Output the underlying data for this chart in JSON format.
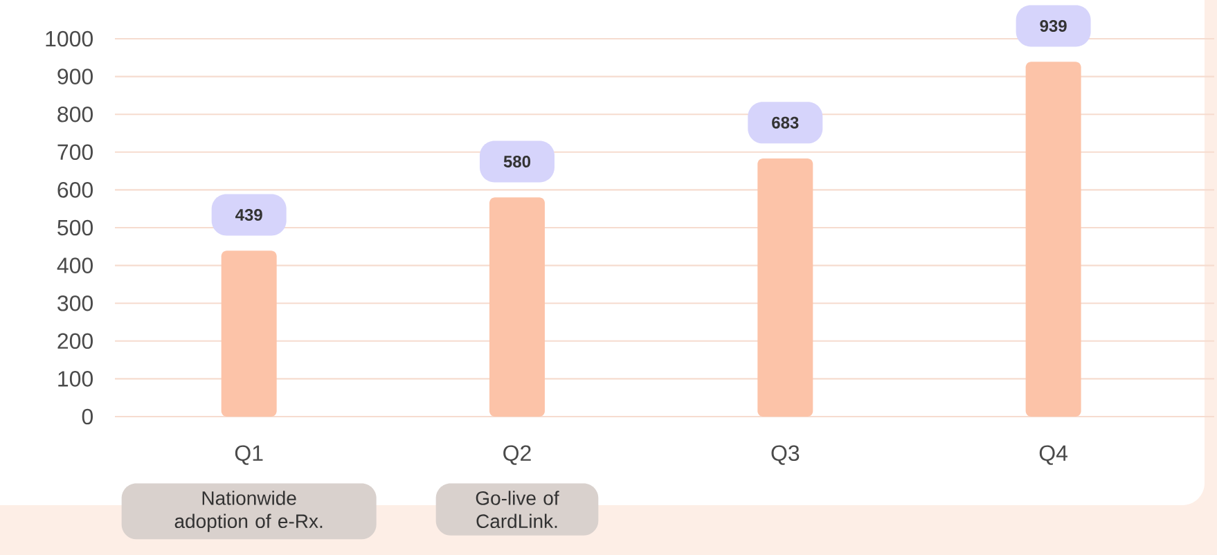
{
  "chart_data": {
    "type": "bar",
    "categories": [
      "Q1",
      "Q2",
      "Q3",
      "Q4"
    ],
    "values": [
      439,
      580,
      683,
      939
    ],
    "color": "#fcc3a8",
    "ylim": [
      0,
      1000
    ],
    "yticks": [
      0,
      100,
      200,
      300,
      400,
      500,
      600,
      700,
      800,
      900,
      1000
    ],
    "grid": "y",
    "data_labels": true,
    "annotations": [
      "Nationwide adoption of e-Rx.",
      "Go-live of CardLink."
    ]
  }
}
